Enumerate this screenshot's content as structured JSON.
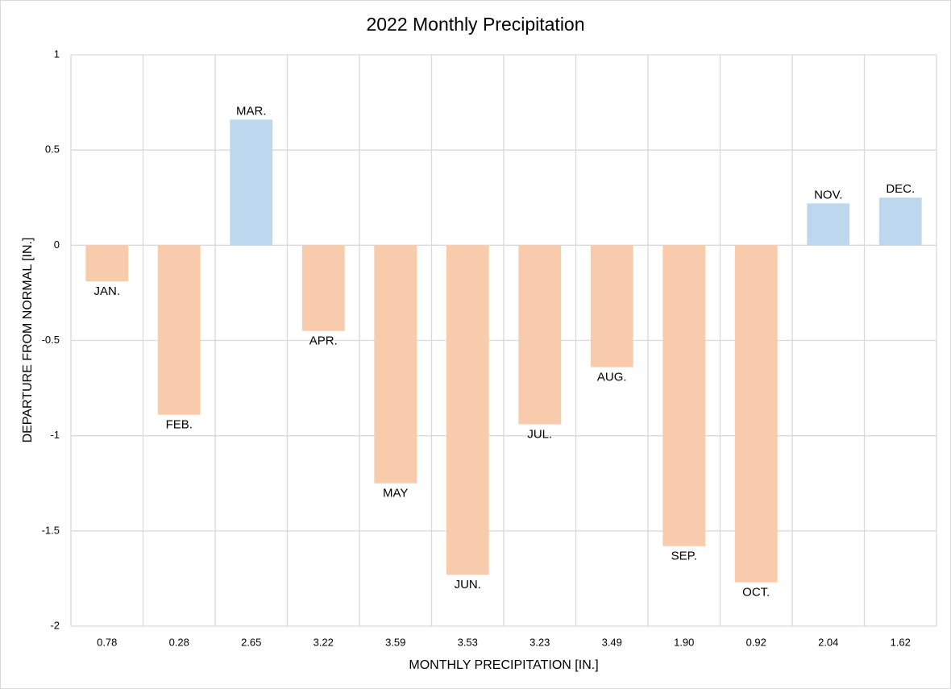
{
  "chart_data": {
    "type": "bar",
    "title": "2022 Monthly Precipitation",
    "x_label": "MONTHLY PRECIPITATION [IN.]",
    "y_label": "DEPARTURE FROM NORMAL [IN.]",
    "categories": [
      "0.78",
      "0.28",
      "2.65",
      "3.22",
      "3.59",
      "3.53",
      "3.23",
      "3.49",
      "1.90",
      "0.92",
      "2.04",
      "1.62"
    ],
    "values": [
      -0.19,
      -0.89,
      0.66,
      -0.45,
      -1.25,
      -1.73,
      -0.94,
      -0.64,
      -1.58,
      -1.77,
      0.22,
      0.25
    ],
    "labels": [
      "JAN.",
      "FEB.",
      "MAR.",
      "APR.",
      "MAY",
      "JUN.",
      "JUL.",
      "AUG.",
      "SEP.",
      "OCT.",
      "NOV.",
      "DEC."
    ],
    "colors": [
      "#f8cbad",
      "#f8cbad",
      "#bdd7ee",
      "#f8cbad",
      "#f8cbad",
      "#f8cbad",
      "#f8cbad",
      "#f8cbad",
      "#f8cbad",
      "#f8cbad",
      "#bdd7ee",
      "#bdd7ee"
    ],
    "ylim": [
      -2,
      1
    ],
    "yticks": [
      1,
      0.5,
      0,
      -0.5,
      -1,
      -1.5,
      -2
    ],
    "grid": true
  }
}
